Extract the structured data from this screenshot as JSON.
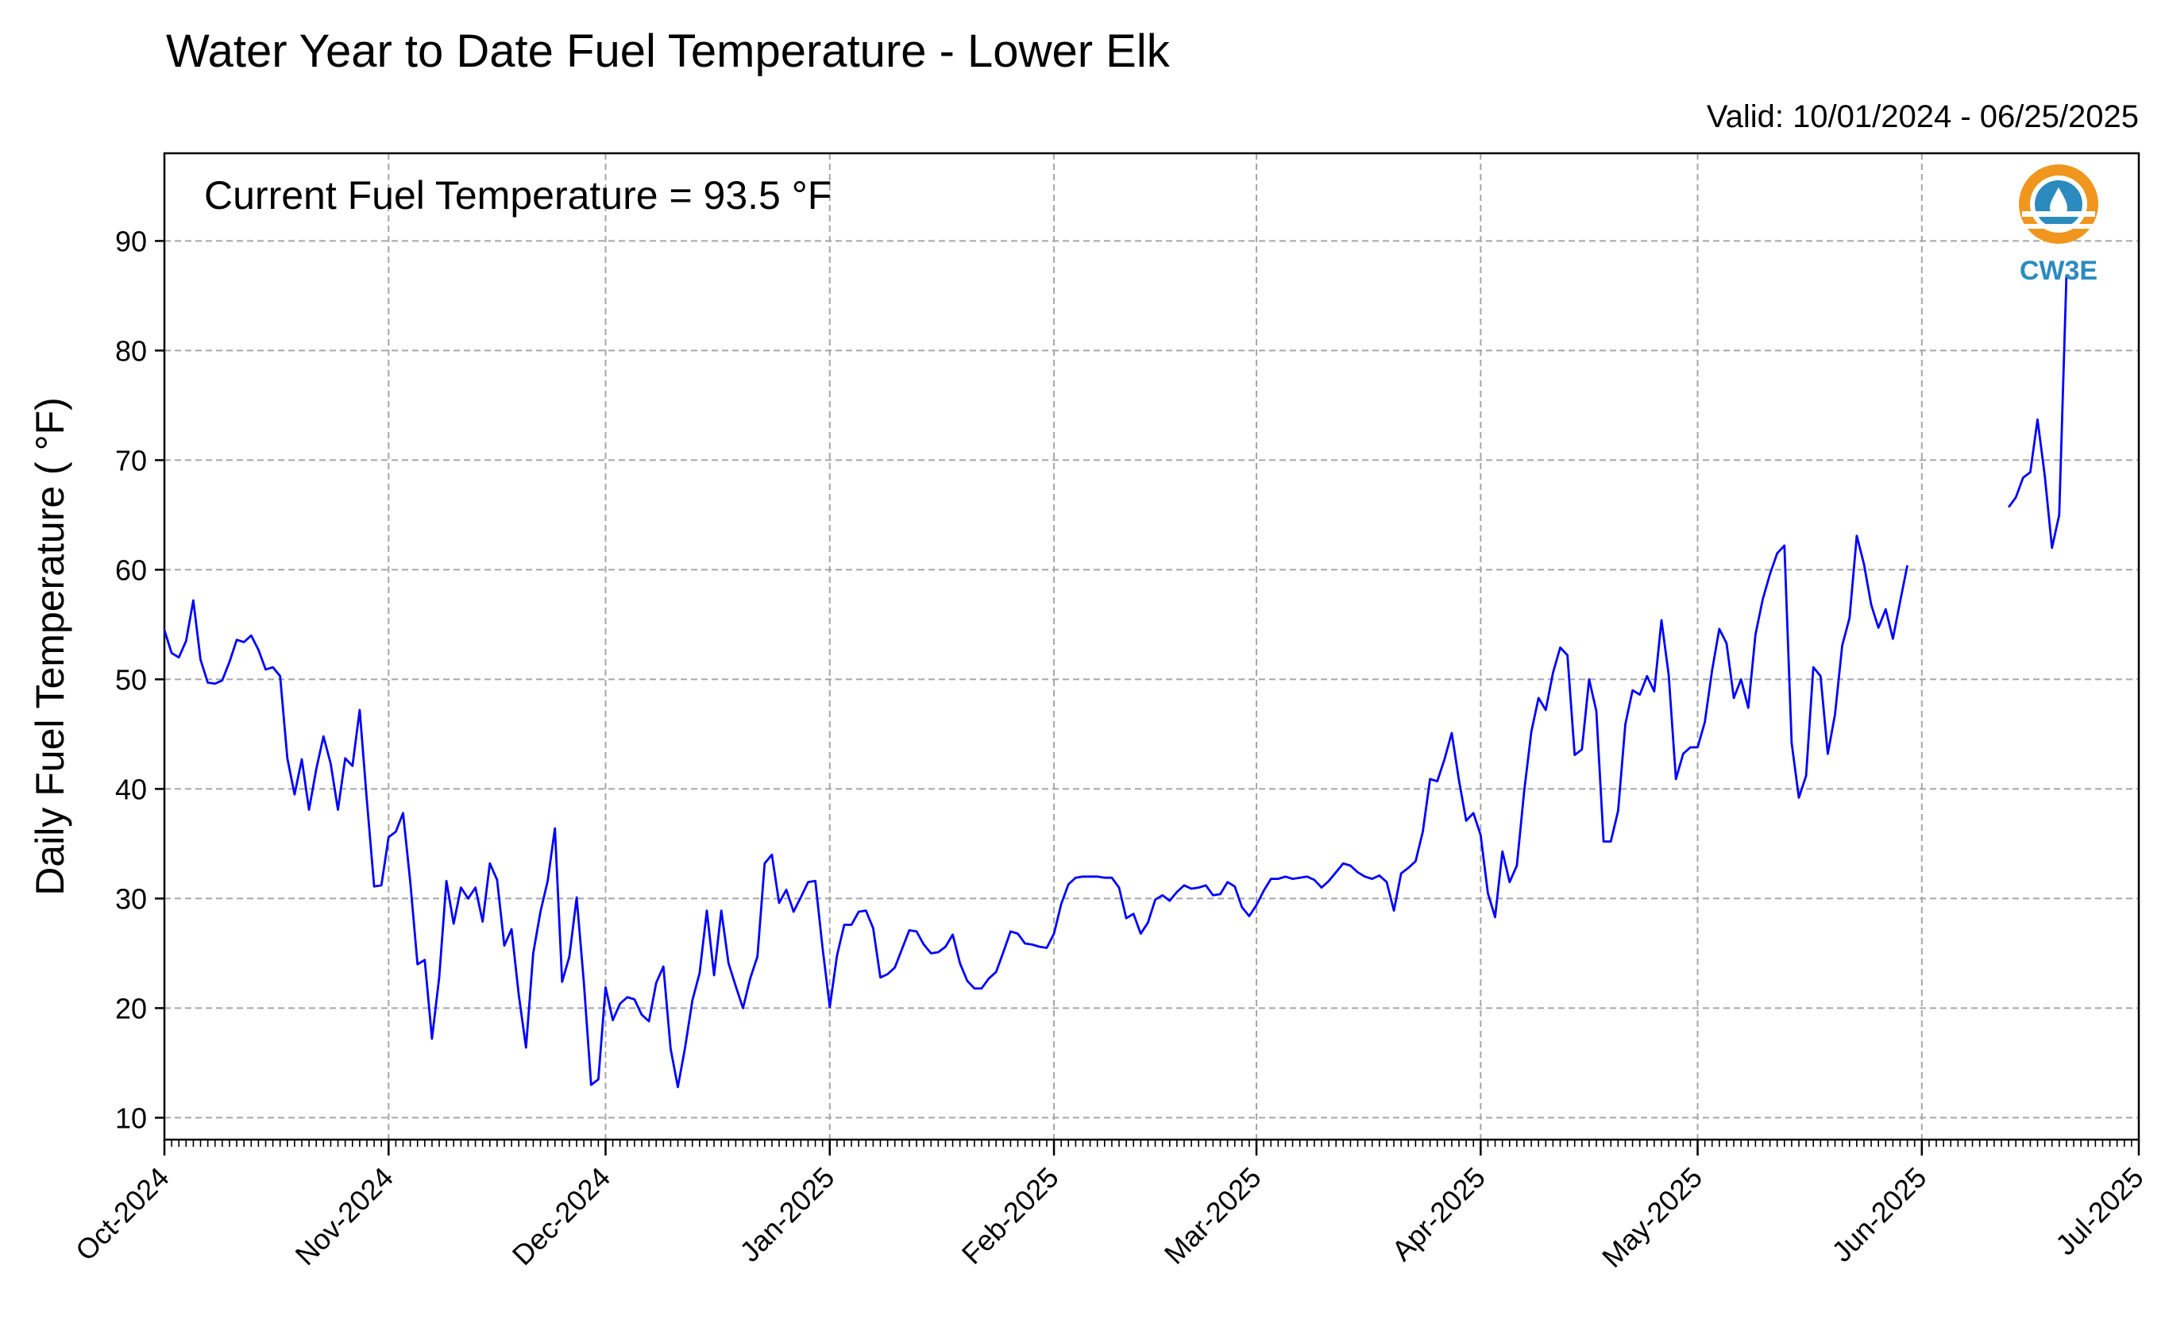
{
  "chart_data": {
    "type": "line",
    "title": "Water Year to Date Fuel Temperature - Lower Elk",
    "valid_text": "Valid: 10/01/2024 - 06/25/2025",
    "annotation": "Current Fuel Temperature = 93.5 °F",
    "ylabel": "Daily Fuel Temperature ( °F)",
    "xlabel": "",
    "xlim": [
      "2024-10-01",
      "2025-07-01"
    ],
    "ylim": [
      8,
      98
    ],
    "yticks": [
      10,
      20,
      30,
      40,
      50,
      60,
      70,
      80,
      90
    ],
    "xticks": [
      {
        "date": "2024-10-01",
        "label": "Oct-2024"
      },
      {
        "date": "2024-11-01",
        "label": "Nov-2024"
      },
      {
        "date": "2024-12-01",
        "label": "Dec-2024"
      },
      {
        "date": "2025-01-01",
        "label": "Jan-2025"
      },
      {
        "date": "2025-02-01",
        "label": "Feb-2025"
      },
      {
        "date": "2025-03-01",
        "label": "Mar-2025"
      },
      {
        "date": "2025-04-01",
        "label": "Apr-2025"
      },
      {
        "date": "2025-05-01",
        "label": "May-2025"
      },
      {
        "date": "2025-06-01",
        "label": "Jun-2025"
      },
      {
        "date": "2025-07-01",
        "label": "Jul-2025"
      }
    ],
    "grid": true,
    "line_color": "#0000ff",
    "logo_text": "CW3E",
    "series": [
      {
        "segments": [
          {
            "start": "2024-10-01",
            "values": [
              54.5,
              52.4,
              52.0,
              53.5,
              57.2,
              51.8,
              49.7,
              49.6,
              49.9,
              51.6,
              53.6,
              53.4,
              54.0,
              52.7,
              50.9,
              51.1,
              50.3,
              42.8,
              39.5,
              42.7,
              38.1,
              41.8,
              44.8,
              42.3,
              38.1,
              42.8,
              42.1,
              47.2,
              38.9,
              31.1,
              31.2,
              35.6,
              36.1,
              37.8,
              31.5,
              24.0,
              24.4,
              17.2,
              22.8,
              31.6,
              27.7,
              31.0,
              30.0,
              31.0,
              27.9,
              33.2,
              31.7,
              25.7,
              27.2,
              21.2,
              16.4,
              25.0,
              28.8,
              31.6,
              36.4,
              22.4,
              24.7,
              30.1,
              22.3,
              13.0,
              13.5,
              21.9,
              18.9,
              20.4,
              21.0,
              20.8,
              19.4,
              18.8,
              22.3,
              23.8,
              16.3,
              12.8,
              16.4,
              20.7,
              23.2,
              28.9,
              23.0,
              28.9,
              24.1,
              22.0,
              20.0,
              22.7,
              24.7,
              33.2,
              34.0,
              29.6,
              30.8,
              28.8,
              30.1,
              31.5,
              31.6,
              25.5,
              20.1,
              24.8,
              27.6,
              27.6,
              28.8,
              28.9,
              27.3,
              22.8,
              23.1,
              23.7,
              25.4,
              27.1,
              27.0,
              25.8,
              25.0,
              25.1,
              25.6,
              26.7,
              24.1,
              22.5,
              21.8,
              21.8,
              22.7,
              23.3,
              25.1,
              27.0,
              26.8,
              25.9,
              25.8,
              25.6,
              25.5,
              26.8,
              29.5,
              31.3,
              31.9,
              32.0,
              32.0,
              32.0,
              31.9,
              31.9,
              31.0,
              28.2,
              28.6,
              26.8,
              27.8,
              29.9,
              30.3,
              29.8,
              30.6,
              31.2,
              30.9,
              31.0,
              31.2,
              30.3,
              30.4,
              31.5,
              31.1,
              29.2,
              28.4,
              29.4,
              30.7,
              31.8,
              31.8,
              32.0,
              31.8,
              31.9,
              32.0,
              31.7,
              31.0,
              31.6,
              32.4,
              33.2,
              33.0,
              32.4,
              32.0,
              31.8,
              32.1,
              31.5,
              28.9,
              32.3,
              32.8,
              33.4,
              36.1,
              40.9,
              40.7,
              42.7,
              45.1,
              40.8,
              37.1,
              37.8,
              35.8,
              30.5,
              28.3,
              34.3,
              31.5,
              33.0,
              39.7,
              45.2,
              48.3,
              47.2,
              50.6,
              52.9,
              52.2,
              43.1,
              43.6,
              50.0,
              47.1,
              35.2,
              35.2,
              38.0,
              45.9,
              49.0,
              48.6,
              50.3,
              48.9,
              55.4,
              50.4,
              40.9,
              43.2,
              43.8,
              43.8,
              46.1,
              50.8,
              54.6,
              53.3,
              48.3,
              50.0,
              47.4,
              54.1,
              57.3,
              59.6,
              61.5,
              62.2,
              44.2,
              39.2,
              41.2,
              51.1,
              50.3,
              43.2,
              46.8,
              53.1,
              55.6,
              63.1,
              60.5,
              56.8,
              54.7,
              56.4,
              53.7,
              57.1,
              60.4
            ]
          },
          {
            "start": "2025-06-13",
            "values": [
              65.7,
              66.6,
              68.4,
              68.9,
              73.7,
              68.6,
              62.0,
              65.0,
              86.8
            ]
          }
        ]
      }
    ]
  }
}
